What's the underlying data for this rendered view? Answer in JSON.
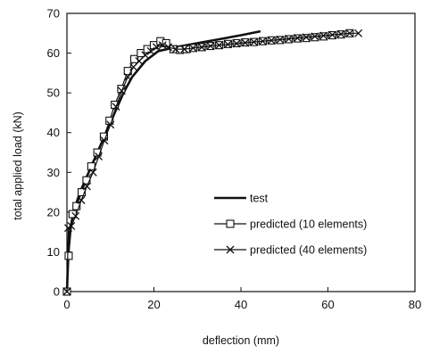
{
  "chart_data": {
    "type": "line",
    "title": "",
    "xlabel": "deflection (mm)",
    "ylabel": "total applied load (kN)",
    "xlim": [
      0,
      80
    ],
    "ylim": [
      0,
      70
    ],
    "x_ticks": [
      0,
      20,
      40,
      60,
      80
    ],
    "y_ticks": [
      0,
      10,
      20,
      30,
      40,
      50,
      60,
      70
    ],
    "grid": false,
    "legend_position": "lower-right",
    "series": [
      {
        "name": "test",
        "marker": "none",
        "color": "#111111",
        "x": [
          0,
          0.5,
          1.5,
          3,
          5,
          7,
          9,
          11,
          13,
          15,
          18,
          21,
          25,
          30,
          35,
          40,
          44.5
        ],
        "y": [
          0,
          14,
          20,
          25,
          30,
          35,
          40,
          45,
          50,
          54,
          58,
          60.5,
          61.5,
          62.5,
          63.5,
          64.5,
          65.5
        ]
      },
      {
        "name": "predicted (10 elements)",
        "marker": "square",
        "color": "#111111",
        "x": [
          0,
          0.4,
          1.3,
          2.2,
          3.4,
          4.5,
          5.6,
          7,
          8.5,
          9.8,
          11,
          12.5,
          14,
          15.5,
          17,
          18.5,
          20,
          21.5,
          22.8,
          24.5,
          26,
          27.5,
          29,
          31,
          33,
          35,
          37,
          39,
          41,
          43,
          45,
          47,
          49,
          51,
          53,
          55,
          57,
          59,
          61,
          63,
          65
        ],
        "y": [
          0,
          9,
          19.5,
          21.5,
          25,
          28,
          31.5,
          35,
          39,
          43,
          47,
          51,
          55.5,
          58.5,
          60,
          61,
          62,
          63,
          62.5,
          61,
          60.8,
          61,
          61.3,
          61.5,
          61.8,
          62,
          62.3,
          62.5,
          62.7,
          62.8,
          63,
          63.2,
          63.3,
          63.5,
          63.7,
          63.8,
          64,
          64.2,
          64.5,
          64.7,
          65
        ]
      },
      {
        "name": "predicted (40 elements)",
        "marker": "x",
        "color": "#111111",
        "x": [
          0,
          0.3,
          1,
          2,
          3.3,
          4.6,
          6,
          7.3,
          8.6,
          10,
          11.3,
          12.6,
          14,
          15.3,
          16.6,
          18,
          19.3,
          20.6,
          22,
          23.3,
          25,
          27,
          29,
          31,
          33,
          35,
          37,
          39,
          41,
          43,
          45,
          47,
          49,
          51,
          53,
          55,
          57,
          59,
          61,
          63,
          65,
          67
        ],
        "y": [
          0,
          16,
          16.5,
          19,
          23,
          26.5,
          30,
          34,
          38,
          42,
          46.5,
          50.5,
          54,
          56.5,
          58,
          59.5,
          60.5,
          61.5,
          62,
          61.5,
          61,
          61,
          61.3,
          61.5,
          61.8,
          62,
          62.2,
          62.4,
          62.6,
          62.8,
          63,
          63.2,
          63.4,
          63.6,
          63.8,
          64,
          64.2,
          64.4,
          64.6,
          64.8,
          65,
          65
        ]
      }
    ]
  }
}
